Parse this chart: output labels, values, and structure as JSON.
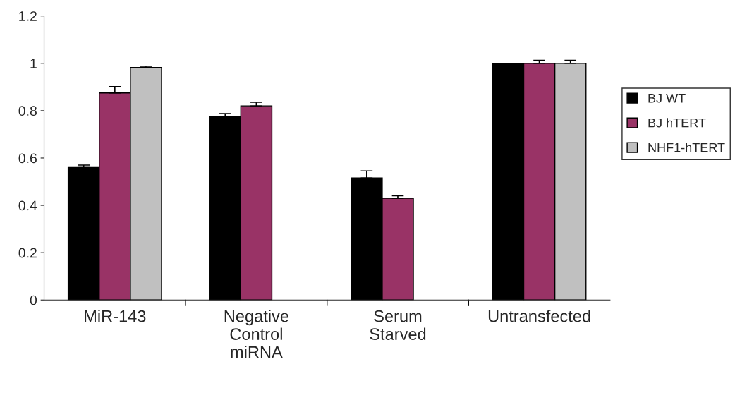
{
  "chart_data": {
    "type": "bar",
    "categories": [
      "MiR-143",
      "Negative\nControl\nmiRNA",
      "Serum\nStarved",
      "Untransfected"
    ],
    "series": [
      {
        "name": "BJ WT",
        "color": "#000000",
        "values": [
          0.56,
          0.776,
          0.516,
          1.0
        ],
        "errors": [
          0.01,
          0.012,
          0.03,
          null
        ]
      },
      {
        "name": "BJ hTERT",
        "color": "#993366",
        "values": [
          0.875,
          0.82,
          0.43,
          1.0
        ],
        "errors": [
          0.027,
          0.015,
          0.01,
          0.013
        ]
      },
      {
        "name": "NHF1-hTERT",
        "color": "#c0c0c0",
        "values": [
          0.982,
          null,
          null,
          1.0
        ],
        "errors": [
          0.005,
          null,
          null,
          0.013
        ]
      }
    ],
    "ylim": [
      0,
      1.2
    ],
    "yticks": [
      0,
      0.2,
      0.4,
      0.6,
      0.8,
      1,
      1.2
    ],
    "grid": false,
    "legend": "right"
  }
}
